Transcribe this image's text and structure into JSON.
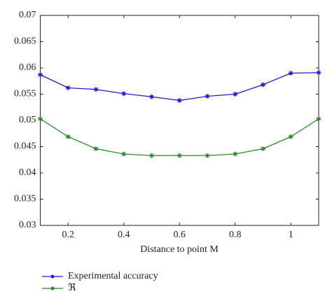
{
  "chart_data": {
    "type": "line",
    "x": [
      0.1,
      0.2,
      0.3,
      0.4,
      0.5,
      0.6,
      0.7,
      0.8,
      0.9,
      1.0,
      1.1
    ],
    "series": [
      {
        "name": "Experimental accuracy",
        "color": "#1c1cd6",
        "values": [
          0.0587,
          0.0562,
          0.0559,
          0.0551,
          0.0545,
          0.0538,
          0.0546,
          0.055,
          0.0568,
          0.059,
          0.0591
        ]
      },
      {
        "name": "ℜ",
        "color": "#2b8a2b",
        "values": [
          0.0503,
          0.0469,
          0.0446,
          0.0436,
          0.0433,
          0.0433,
          0.0433,
          0.0436,
          0.0446,
          0.0469,
          0.0503
        ]
      }
    ],
    "xlabel": "Distance to point M",
    "xlim": [
      0.1,
      1.1
    ],
    "xticks": [
      0.2,
      0.4,
      0.6,
      0.8,
      {
        "value": 1.0,
        "label": "1"
      }
    ],
    "ylim": [
      0.03,
      0.07
    ],
    "yticks": [
      0.03,
      0.035,
      0.04,
      0.045,
      0.05,
      0.055,
      0.06,
      0.065,
      0.07
    ],
    "grid": false
  }
}
